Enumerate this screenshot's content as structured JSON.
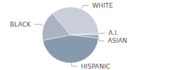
{
  "chart_data": {
    "type": "pie",
    "categories": [
      "WHITE",
      "A.I.",
      "ASIAN",
      "HISPANIC",
      "BLACK"
    ],
    "values": [
      35,
      1,
      2,
      45,
      17
    ],
    "colors": [
      "#c9ced8",
      "#b7bfcc",
      "#9facbd",
      "#8799ad",
      "#aab3c1"
    ]
  }
}
